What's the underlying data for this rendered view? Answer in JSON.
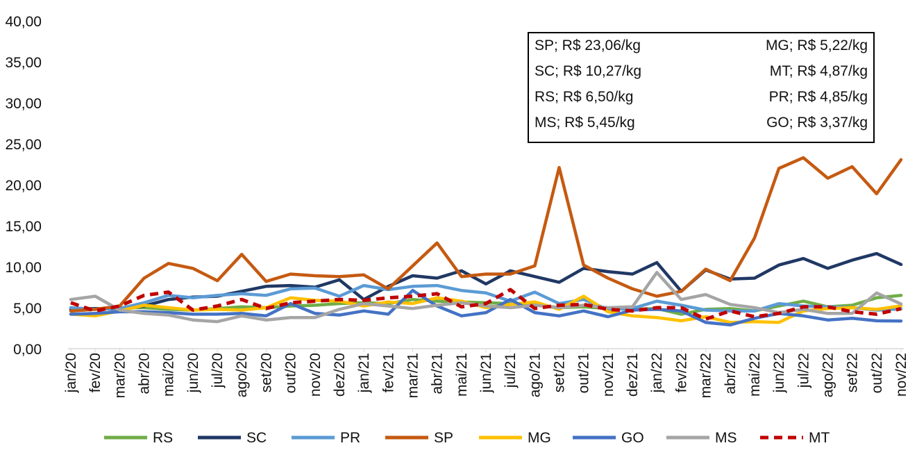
{
  "chart_data": {
    "type": "line",
    "title": "",
    "xlabel": "",
    "ylabel": "",
    "ylim": [
      0,
      40
    ],
    "yticks": [
      "0,00",
      "5,00",
      "10,00",
      "15,00",
      "20,00",
      "25,00",
      "30,00",
      "35,00",
      "40,00"
    ],
    "grid": false,
    "legend_position": "bottom",
    "categories": [
      "jan/20",
      "fev/20",
      "mar/20",
      "abr/20",
      "mai/20",
      "jun/20",
      "jul/20",
      "ago/20",
      "set/20",
      "out/20",
      "nov/20",
      "dez/20",
      "jan/21",
      "fev/21",
      "mar/21",
      "abr/21",
      "mai/21",
      "jun/21",
      "jul/21",
      "ago/21",
      "set/21",
      "out/21",
      "nov/21",
      "dez/21",
      "jan/22",
      "fev/22",
      "mar/22",
      "abr/22",
      "mai/22",
      "jun/22",
      "jul/22",
      "ago/22",
      "set/22",
      "out/22",
      "nov/22"
    ],
    "series": [
      {
        "name": "RS",
        "color": "#70AD47",
        "dash": false,
        "values": [
          4.6,
          4.8,
          5.0,
          5.0,
          4.8,
          4.7,
          4.9,
          5.1,
          5.0,
          5.2,
          5.3,
          5.5,
          5.6,
          5.5,
          6.0,
          5.8,
          5.7,
          5.6,
          5.5,
          5.4,
          5.0,
          5.1,
          4.9,
          4.8,
          4.9,
          4.2,
          4.8,
          4.9,
          4.6,
          5.2,
          5.8,
          5.1,
          5.3,
          6.2,
          6.5
        ]
      },
      {
        "name": "SC",
        "color": "#203864",
        "dash": false,
        "values": [
          4.8,
          4.9,
          4.8,
          5.2,
          6.0,
          6.3,
          6.4,
          7.0,
          7.6,
          7.7,
          7.5,
          8.4,
          6.0,
          7.6,
          8.9,
          8.6,
          9.5,
          7.9,
          9.5,
          8.8,
          8.1,
          9.8,
          9.4,
          9.1,
          10.5,
          7.0,
          9.6,
          8.5,
          8.6,
          10.2,
          11.0,
          9.8,
          10.8,
          11.6,
          10.27
        ]
      },
      {
        "name": "PR",
        "color": "#5B9BD5",
        "dash": false,
        "values": [
          5.0,
          4.8,
          4.9,
          5.6,
          6.5,
          6.2,
          6.5,
          6.7,
          6.5,
          7.3,
          7.4,
          6.4,
          7.7,
          7.2,
          7.6,
          7.7,
          7.1,
          6.8,
          5.8,
          6.9,
          5.5,
          6.0,
          4.8,
          4.9,
          5.8,
          5.3,
          4.7,
          4.6,
          4.6,
          5.5,
          5.2,
          5.1,
          5.0,
          4.7,
          4.85
        ]
      },
      {
        "name": "SP",
        "color": "#C55A11",
        "dash": false,
        "values": [
          4.6,
          4.8,
          5.2,
          8.6,
          10.4,
          9.8,
          8.3,
          11.5,
          8.2,
          9.1,
          8.9,
          8.8,
          9.0,
          7.3,
          10.1,
          12.9,
          8.8,
          9.1,
          9.1,
          10.1,
          22.1,
          10.2,
          8.6,
          7.3,
          6.4,
          7.0,
          9.7,
          8.3,
          13.5,
          22.0,
          23.3,
          20.8,
          22.2,
          18.9,
          23.06
        ]
      },
      {
        "name": "MG",
        "color": "#FFC000",
        "dash": false,
        "values": [
          4.2,
          4.0,
          4.6,
          5.3,
          5.0,
          4.7,
          4.8,
          4.7,
          5.0,
          6.2,
          5.9,
          5.8,
          5.2,
          5.7,
          5.5,
          6.2,
          5.8,
          5.0,
          5.4,
          5.7,
          4.8,
          6.4,
          4.5,
          4.0,
          3.8,
          3.4,
          3.9,
          3.2,
          3.3,
          3.2,
          4.6,
          4.9,
          5.0,
          4.8,
          5.22
        ]
      },
      {
        "name": "GO",
        "color": "#4472C4",
        "dash": false,
        "values": [
          4.2,
          4.3,
          4.5,
          4.5,
          4.4,
          4.2,
          4.2,
          4.3,
          4.0,
          5.5,
          4.3,
          4.1,
          4.6,
          4.2,
          7.1,
          5.2,
          4.0,
          4.4,
          6.0,
          4.4,
          4.0,
          4.6,
          3.9,
          4.7,
          4.8,
          4.6,
          3.2,
          2.9,
          3.7,
          4.3,
          4.0,
          3.5,
          3.7,
          3.4,
          3.37
        ]
      },
      {
        "name": "MS",
        "color": "#A5A5A5",
        "dash": false,
        "values": [
          6.0,
          6.4,
          4.7,
          4.3,
          4.1,
          3.5,
          3.3,
          4.0,
          3.5,
          3.8,
          3.8,
          4.8,
          5.5,
          5.2,
          4.9,
          5.3,
          5.6,
          5.2,
          5.0,
          5.3,
          5.0,
          5.3,
          5.0,
          5.1,
          9.3,
          6.0,
          6.6,
          5.4,
          5.0,
          4.4,
          4.8,
          4.3,
          4.3,
          6.8,
          5.45
        ]
      },
      {
        "name": "MT",
        "color": "#C00000",
        "dash": true,
        "values": [
          5.6,
          4.6,
          5.2,
          6.5,
          6.9,
          4.7,
          5.2,
          6.0,
          4.9,
          5.6,
          5.8,
          6.0,
          5.9,
          6.2,
          6.4,
          6.7,
          5.1,
          5.5,
          7.2,
          4.9,
          5.3,
          5.4,
          4.8,
          4.6,
          5.0,
          5.0,
          3.6,
          4.6,
          3.9,
          4.3,
          5.1,
          5.1,
          4.5,
          4.2,
          4.87
        ]
      }
    ],
    "annotation": {
      "left": [
        "SP; R$ 23,06/kg",
        "SC; R$ 10,27/kg",
        "RS; R$ 6,50/kg",
        "MS; R$ 5,45/kg"
      ],
      "right": [
        "MG; R$ 5,22/kg",
        "MT; R$ 4,87/kg",
        "PR; R$ 4,85/kg",
        "GO; R$ 3,37/kg"
      ]
    }
  }
}
